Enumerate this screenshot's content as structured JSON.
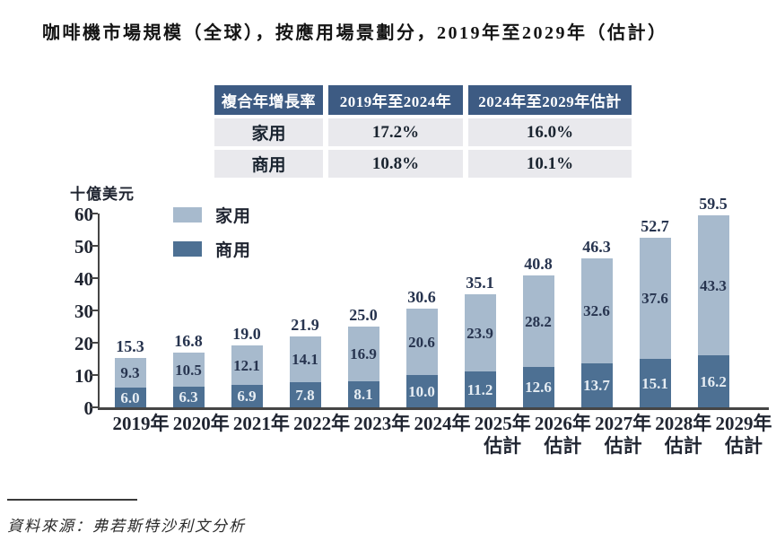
{
  "title": "咖啡機市場規模（全球），按應用場景劃分，2019年至2029年（估計）",
  "cagr_table": {
    "header": [
      "複合年增長率",
      "2019年至2024年",
      "2024年至2029年估計"
    ],
    "rows": [
      {
        "label": "家用",
        "values": [
          "17.2%",
          "16.0%"
        ]
      },
      {
        "label": "商用",
        "values": [
          "10.8%",
          "10.1%"
        ]
      }
    ]
  },
  "chart_data": {
    "type": "bar",
    "stacked": true,
    "title": "咖啡機市場規模（全球），按應用場景劃分，2019年至2029年（估計）",
    "ylabel": "十億美元",
    "ylim": [
      0,
      60
    ],
    "yticks": [
      0,
      10,
      20,
      30,
      40,
      50,
      60
    ],
    "grid": false,
    "legend_position": "top-left-inside",
    "categories": [
      {
        "line1": "2019年",
        "line2": ""
      },
      {
        "line1": "2020年",
        "line2": ""
      },
      {
        "line1": "2021年",
        "line2": ""
      },
      {
        "line1": "2022年",
        "line2": ""
      },
      {
        "line1": "2023年",
        "line2": ""
      },
      {
        "line1": "2024年",
        "line2": ""
      },
      {
        "line1": "2025年",
        "line2": "估計"
      },
      {
        "line1": "2026年",
        "line2": "估計"
      },
      {
        "line1": "2027年",
        "line2": "估計"
      },
      {
        "line1": "2028年",
        "line2": "估計"
      },
      {
        "line1": "2029年",
        "line2": "估計"
      }
    ],
    "series": [
      {
        "name": "家用",
        "color": "#a7bacd",
        "label_color": "#27344f",
        "values": [
          9.3,
          10.5,
          12.1,
          14.1,
          16.9,
          20.6,
          23.9,
          28.2,
          32.6,
          37.6,
          43.3
        ]
      },
      {
        "name": "商用",
        "color": "#4d7093",
        "label_color": "#e6edf3",
        "values": [
          6.0,
          6.3,
          6.9,
          7.8,
          8.1,
          10.0,
          11.2,
          12.6,
          13.7,
          15.1,
          16.2
        ]
      }
    ],
    "totals": [
      15.3,
      16.8,
      19.0,
      21.9,
      25.0,
      30.6,
      35.1,
      40.8,
      46.3,
      52.7,
      59.5
    ]
  },
  "colors": {
    "table_header_bg": "#3d5b83",
    "table_row_bg": "#e9e9ed",
    "axis": "#454545",
    "value_text": "#27344f"
  },
  "footer": {
    "source": "資料來源：弗若斯特沙利文分析"
  }
}
